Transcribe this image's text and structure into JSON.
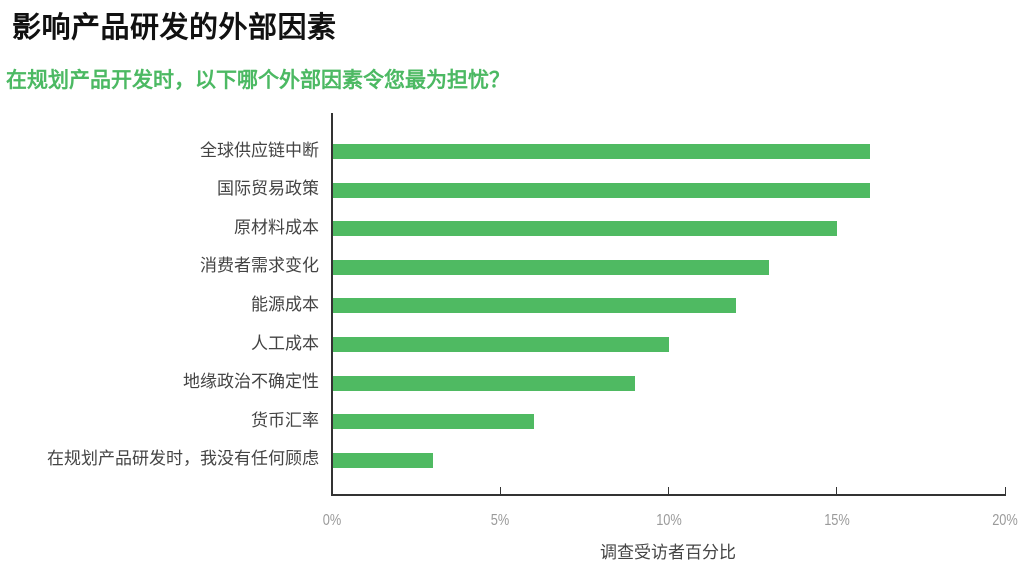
{
  "title": "影响产品研发的外部因素",
  "subtitle": "在规划产品开发时，以下哪个外部因素令您最为担忧？",
  "chart_data": {
    "type": "bar",
    "orientation": "horizontal",
    "title": "影响产品研发的外部因素",
    "subtitle": "在规划产品开发时，以下哪个外部因素令您最为担忧？",
    "xlabel": "调查受访者百分比",
    "ylabel": "",
    "xlim": [
      0,
      20
    ],
    "x_ticks": [
      "0%",
      "5%",
      "10%",
      "15%",
      "20%"
    ],
    "grid": false,
    "legend": null,
    "bar_color": "#4fba62",
    "categories": [
      "全球供应链中断",
      "国际贸易政策",
      "原材料成本",
      "消费者需求变化",
      "能源成本",
      "人工成本",
      "地缘政治不确定性",
      "货币汇率",
      "在规划产品研发时，我没有任何顾虑"
    ],
    "values": [
      16,
      16,
      15,
      13,
      12,
      10,
      9,
      6,
      3
    ]
  }
}
